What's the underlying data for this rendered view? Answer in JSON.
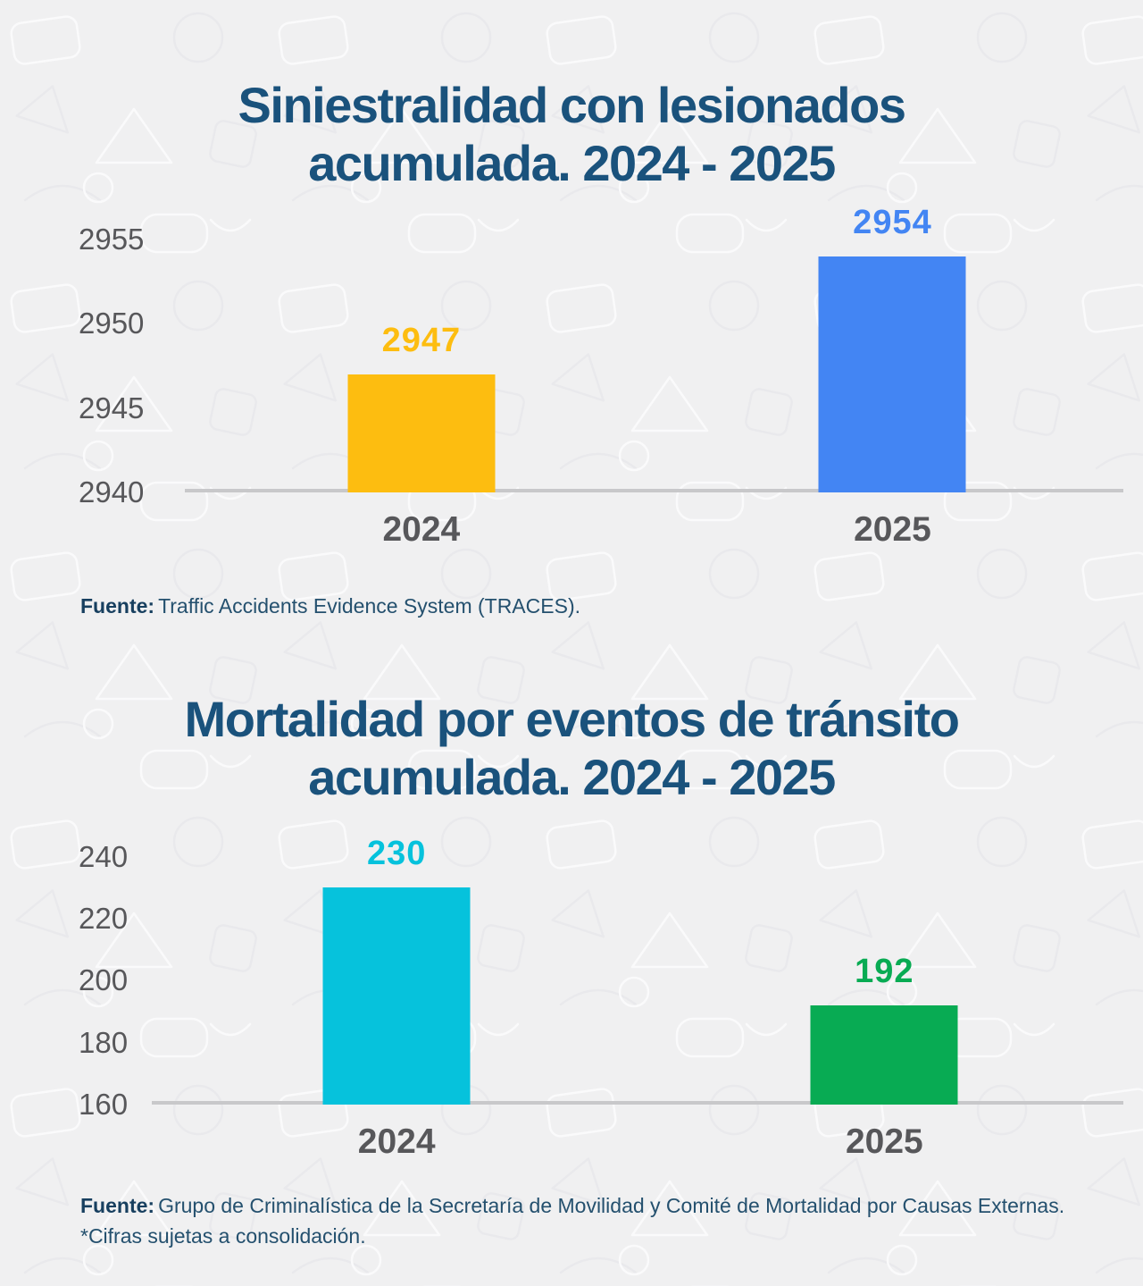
{
  "chart_data": [
    {
      "type": "bar",
      "title": "Siniestralidad con lesionados acumulada. 2024 - 2025",
      "title_lines": [
        "Siniestralidad con lesionados",
        "acumulada. 2024 - 2025"
      ],
      "categories": [
        "2024",
        "2025"
      ],
      "values": [
        2947,
        2954
      ],
      "bar_colors": [
        "#FDBD10",
        "#4385F3"
      ],
      "value_label_colors": [
        "#FDBD10",
        "#4385F3"
      ],
      "ylim": [
        2940,
        2955
      ],
      "yticks": [
        2955,
        2950,
        2945,
        2940
      ],
      "grid": false,
      "legend": "none",
      "xlabel": "",
      "ylabel": "",
      "source_label": "Fuente:",
      "source_text": "Traffic Accidents Evidence System (TRACES)."
    },
    {
      "type": "bar",
      "title": "Mortalidad por eventos de tránsito acumulada. 2024 - 2025",
      "title_lines": [
        "Mortalidad por eventos de tránsito",
        "acumulada. 2024 - 2025"
      ],
      "categories": [
        "2024",
        "2025"
      ],
      "values": [
        230,
        192
      ],
      "bar_colors": [
        "#06C2DC",
        "#08AB53"
      ],
      "value_label_colors": [
        "#06C2DC",
        "#08AB53"
      ],
      "ylim": [
        160,
        240
      ],
      "yticks": [
        240,
        220,
        200,
        180,
        160
      ],
      "grid": false,
      "legend": "none",
      "xlabel": "",
      "ylabel": "",
      "source_label": "Fuente:",
      "source_text": "Grupo de Criminalística de la Secretaría de Movilidad y Comité de Mortalidad por Causas Externas.",
      "footnote": "*Cifras sujetas a consolidación."
    }
  ],
  "colors": {
    "title_text": "#1A527C",
    "axis_text": "#57575A",
    "baseline": "#C8C8CA",
    "source_text": "#24506E",
    "background": "#F0F0F1"
  }
}
